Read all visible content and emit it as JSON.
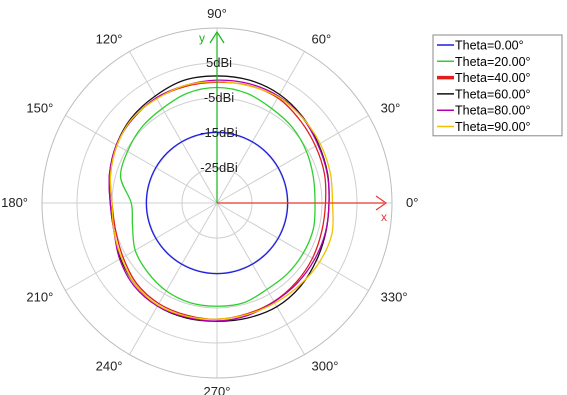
{
  "chart_data": {
    "type": "line",
    "projection": "polar",
    "angle_unit": "deg",
    "angle_ticks": [
      0,
      30,
      60,
      90,
      120,
      150,
      180,
      210,
      240,
      270,
      300,
      330
    ],
    "angle_labels": [
      "0°",
      "30°",
      "60°",
      "90°",
      "120°",
      "150°",
      "180°",
      "210°",
      "240°",
      "270°",
      "300°",
      "330°"
    ],
    "r_unit": "dBi",
    "r_range": [
      -35,
      15
    ],
    "r_ticks": [
      -25,
      -15,
      -5,
      5
    ],
    "r_labels": [
      "-25dBi",
      "-15dBi",
      "-5dBi",
      "5dBi"
    ],
    "axis_markers": {
      "x": "x",
      "y": "y"
    },
    "angle_samples": [
      0,
      15,
      30,
      45,
      60,
      75,
      90,
      105,
      120,
      135,
      150,
      165,
      180,
      195,
      210,
      225,
      240,
      255,
      270,
      285,
      300,
      315,
      330,
      345
    ],
    "legend_position": "top-right",
    "series": [
      {
        "name": "Theta=0.00°",
        "color": "#1f1fe6",
        "values": [
          -14.8,
          -14.8,
          -14.8,
          -14.8,
          -14.8,
          -14.8,
          -14.8,
          -14.8,
          -14.8,
          -14.8,
          -14.8,
          -14.8,
          -14.8,
          -14.8,
          -14.8,
          -14.8,
          -14.8,
          -14.8,
          -14.8,
          -14.8,
          -14.8,
          -14.8,
          -14.8,
          -14.8
        ]
      },
      {
        "name": "Theta=20.00°",
        "color": "#2fcf2f",
        "values": [
          -7,
          -6.5,
          -5.5,
          -4.5,
          -3.8,
          -2.5,
          -2,
          -2.5,
          -3.8,
          -4.5,
          -5.5,
          -6.5,
          -10.5,
          -10,
          -8,
          -7,
          -6,
          -5.5,
          -5.5,
          -5.5,
          -6.5,
          -6.5,
          -6.5,
          -6.5
        ]
      },
      {
        "name": "Theta=40.00°",
        "color": "#e01e1e",
        "values": [
          -4,
          -3.2,
          -2.5,
          -1.5,
          -0.3,
          -0.2,
          -0.5,
          -0.5,
          -0.5,
          -0.8,
          -2,
          -3.5,
          -5,
          -5,
          -4,
          -2.5,
          -1.8,
          -1.8,
          -1.8,
          -2.2,
          -2.5,
          -3,
          -3.5,
          -4
        ]
      },
      {
        "name": "Theta=60.00°",
        "color": "#111111",
        "values": [
          -3,
          -2.3,
          -1.5,
          -0.3,
          0.8,
          1.3,
          1.3,
          1.3,
          0.3,
          -0.5,
          -1.8,
          -3.2,
          -4.5,
          -4.5,
          -3.2,
          -2,
          -1,
          -1,
          -1.2,
          -1,
          -0.8,
          -1.3,
          -2.2,
          -2.8
        ]
      },
      {
        "name": "Theta=80.00°",
        "color": "#b000b0",
        "values": [
          -3,
          -2.4,
          -1.7,
          -0.5,
          0.2,
          0.3,
          0.1,
          -0.2,
          -0.3,
          -1,
          -1.8,
          -3.2,
          -4.5,
          -4.5,
          -2.9,
          -1.5,
          -1,
          -1.2,
          -1.3,
          -1.7,
          -2.4,
          -2.6,
          -2.8,
          -2.9
        ]
      },
      {
        "name": "Theta=90.00°",
        "color": "#f2c000",
        "values": [
          -2,
          -1.5,
          -1,
          -0.5,
          0,
          -0.3,
          -0.3,
          -0.2,
          -0.6,
          -0.8,
          -2,
          -3.5,
          -5,
          -4.5,
          -3.5,
          -2,
          -1.3,
          -1.5,
          -1.8,
          -2,
          -2,
          -1.7,
          -1.2,
          -1
        ]
      }
    ]
  }
}
